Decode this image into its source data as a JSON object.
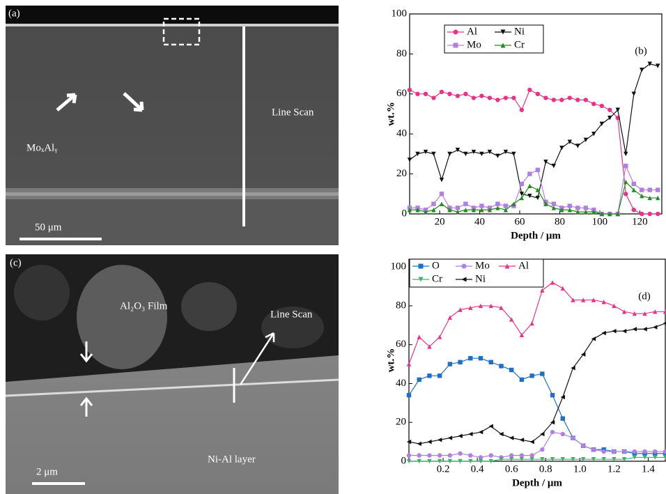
{
  "figure_panels": [
    {
      "label": "(a)",
      "annotations": [
        "Line Scan",
        "MoₓAlᵧ"
      ],
      "scale_bar": "50 μm"
    },
    {
      "label": "(c)",
      "annotations": [
        "Al₂O₃ Film",
        "Line Scan",
        "Ni-Al layer"
      ],
      "scale_bar": "2 μm"
    }
  ],
  "chart_data": [
    {
      "type": "line",
      "panel_label": "(b)",
      "x_label": "Depth / μm",
      "y_label": "wt.%",
      "x": [
        5,
        9,
        13,
        17,
        21,
        25,
        29,
        33,
        37,
        41,
        45,
        49,
        53,
        57,
        61,
        65,
        69,
        73,
        77,
        81,
        85,
        89,
        93,
        97,
        101,
        105,
        109,
        113,
        117,
        121,
        125,
        129
      ],
      "xlim": [
        5,
        131
      ],
      "xticks": [
        20,
        40,
        60,
        80,
        100,
        120
      ],
      "ylim": [
        0,
        100
      ],
      "yticks": [
        0,
        20,
        40,
        60,
        80,
        100
      ],
      "legend": "upper left",
      "series": [
        {
          "name": "Al",
          "color": "#e8338a",
          "marker": "circle",
          "values": [
            62,
            60,
            60,
            58,
            61,
            60,
            59,
            60,
            58,
            59,
            58,
            57,
            58,
            58,
            52,
            62,
            60,
            58,
            57,
            57,
            58,
            57,
            57,
            55,
            54,
            52,
            48,
            10,
            2,
            0,
            0,
            0
          ]
        },
        {
          "name": "Ni",
          "color": "#111111",
          "marker": "triangle-down",
          "values": [
            27,
            30,
            31,
            30,
            17,
            30,
            32,
            30,
            31,
            30,
            31,
            29,
            31,
            30,
            10,
            9,
            8,
            26,
            24,
            33,
            36,
            34,
            37,
            40,
            45,
            48,
            52,
            30,
            60,
            72,
            75,
            74
          ]
        },
        {
          "name": "Mo",
          "color": "#b07fe0",
          "marker": "square",
          "values": [
            3,
            3,
            2,
            5,
            10,
            3,
            3,
            5,
            3,
            4,
            3,
            5,
            4,
            4,
            15,
            20,
            22,
            6,
            5,
            3,
            4,
            3,
            3,
            2,
            0,
            0,
            0,
            24,
            15,
            12,
            12,
            12
          ]
        },
        {
          "name": "Cr",
          "color": "#1e8c1e",
          "marker": "triangle-up",
          "values": [
            2,
            2,
            1,
            2,
            5,
            2,
            1,
            2,
            2,
            2,
            2,
            3,
            2,
            5,
            8,
            14,
            12,
            5,
            3,
            2,
            2,
            1,
            1,
            1,
            0,
            0,
            0,
            16,
            12,
            9,
            8,
            8
          ]
        }
      ]
    },
    {
      "type": "line",
      "panel_label": "(d)",
      "x_label": "Depth / μm",
      "y_label": "wt.%",
      "x": [
        0,
        0.06,
        0.12,
        0.18,
        0.24,
        0.3,
        0.36,
        0.42,
        0.48,
        0.54,
        0.6,
        0.66,
        0.72,
        0.78,
        0.84,
        0.9,
        0.96,
        1.02,
        1.08,
        1.14,
        1.2,
        1.26,
        1.32,
        1.38,
        1.44,
        1.5
      ],
      "xlim": [
        0,
        1.5
      ],
      "xticks": [
        0.2,
        0.4,
        0.6,
        0.8,
        {
          "value": 1,
          "label": "1.0"
        },
        1.2,
        1.4
      ],
      "ylim": [
        0,
        104
      ],
      "yticks": [
        0,
        20,
        40,
        60,
        80,
        100
      ],
      "legend": "upper left",
      "series": [
        {
          "name": "O",
          "color": "#1f6fc4",
          "marker": "square",
          "values": [
            34,
            42,
            44,
            44,
            50,
            51,
            53,
            53,
            51,
            49,
            47,
            42,
            44,
            45,
            34,
            22,
            12,
            8,
            6,
            6,
            5,
            5,
            4,
            4,
            4,
            4
          ]
        },
        {
          "name": "Mo",
          "color": "#b07fe0",
          "marker": "circle",
          "values": [
            3,
            3,
            3,
            3,
            3,
            4,
            3,
            2,
            3,
            2,
            3,
            3,
            3,
            6,
            15,
            14,
            12,
            8,
            6,
            5,
            5,
            5,
            5,
            5,
            5,
            5
          ]
        },
        {
          "name": "Al",
          "color": "#e8338a",
          "marker": "triangle-up",
          "values": [
            50,
            64,
            59,
            64,
            74,
            78,
            79,
            80,
            80,
            79,
            73,
            65,
            71,
            88,
            92,
            89,
            83,
            83,
            83,
            82,
            80,
            77,
            76,
            76,
            77,
            77
          ]
        },
        {
          "name": "Cr",
          "color": "#3cb371",
          "marker": "triangle-down",
          "values": [
            0,
            0,
            0,
            0,
            0,
            0,
            0,
            0,
            0,
            1,
            1,
            1,
            1,
            1,
            1,
            1,
            1,
            1,
            1,
            1,
            1,
            1,
            2,
            2,
            2,
            2
          ]
        },
        {
          "name": "Ni",
          "color": "#111111",
          "marker": "triangle-left",
          "values": [
            10,
            9,
            10,
            11,
            12,
            13,
            14,
            15,
            18,
            14,
            12,
            11,
            10,
            14,
            20,
            33,
            48,
            55,
            63,
            66,
            67,
            67,
            68,
            68,
            69,
            71
          ]
        }
      ]
    }
  ]
}
